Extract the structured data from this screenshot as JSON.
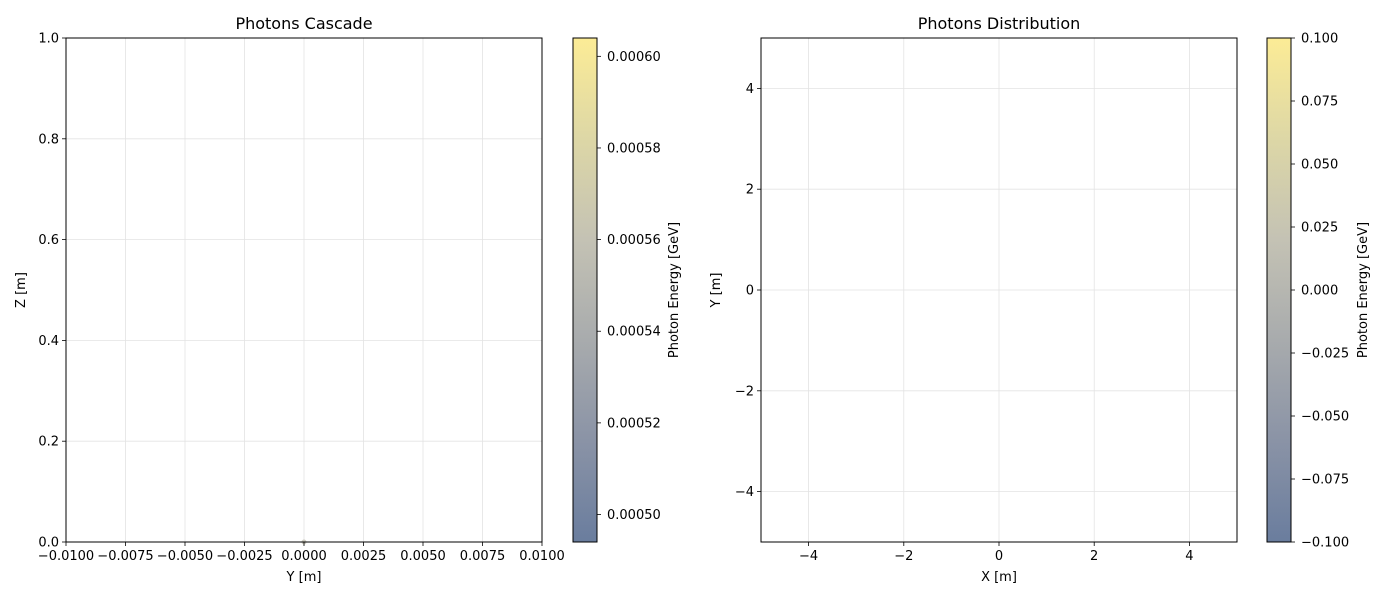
{
  "colormap": [
    "#6a7d9e",
    "#8a93a6",
    "#a8abad",
    "#c4c2b4",
    "#ddd7a6",
    "#fcec96"
  ],
  "chart_data": [
    {
      "type": "scatter",
      "title": "Photons Cascade",
      "xlabel": "Y [m]",
      "ylabel": "Z [m]",
      "xlim": [
        -0.01,
        0.01
      ],
      "ylim": [
        0.0,
        1.0
      ],
      "xticks": [
        -0.01,
        -0.0075,
        -0.005,
        -0.0025,
        0.0,
        0.0025,
        0.005,
        0.0075,
        0.01
      ],
      "xtick_labels": [
        "−0.0100",
        "−0.0075",
        "−0.0050",
        "−0.0025",
        "0.0000",
        "0.0025",
        "0.0050",
        "0.0075",
        "0.0100"
      ],
      "yticks": [
        0.0,
        0.2,
        0.4,
        0.6,
        0.8,
        1.0
      ],
      "ytick_labels": [
        "0.0",
        "0.2",
        "0.4",
        "0.6",
        "0.8",
        "1.0"
      ],
      "grid": true,
      "points": [
        {
          "x": 0.0,
          "y": 0.0,
          "energy": 0.00055
        }
      ],
      "colorbar": {
        "label": "Photon Energy [GeV]",
        "range": [
          0.000494,
          0.000604
        ],
        "ticks": [
          0.0005,
          0.00052,
          0.00054,
          0.00056,
          0.00058,
          0.0006
        ],
        "tick_labels": [
          "0.00050",
          "0.00052",
          "0.00054",
          "0.00056",
          "0.00058",
          "0.00060"
        ]
      }
    },
    {
      "type": "scatter",
      "title": "Photons Distribution",
      "xlabel": "X [m]",
      "ylabel": "Y [m]",
      "xlim": [
        -5,
        5
      ],
      "ylim": [
        -5,
        5
      ],
      "xticks": [
        -4,
        -2,
        0,
        2,
        4
      ],
      "xtick_labels": [
        "−4",
        "−2",
        "0",
        "2",
        "4"
      ],
      "yticks": [
        -4,
        -2,
        0,
        2,
        4
      ],
      "ytick_labels": [
        "−4",
        "−2",
        "0",
        "2",
        "4"
      ],
      "grid": true,
      "points": [],
      "colorbar": {
        "label": "Photon Energy [GeV]",
        "range": [
          -0.1,
          0.1
        ],
        "ticks": [
          -0.1,
          -0.075,
          -0.05,
          -0.025,
          0.0,
          0.025,
          0.05,
          0.075,
          0.1
        ],
        "tick_labels": [
          "−0.100",
          "−0.075",
          "−0.050",
          "−0.025",
          "0.000",
          "0.025",
          "0.050",
          "0.075",
          "0.100"
        ]
      }
    }
  ]
}
